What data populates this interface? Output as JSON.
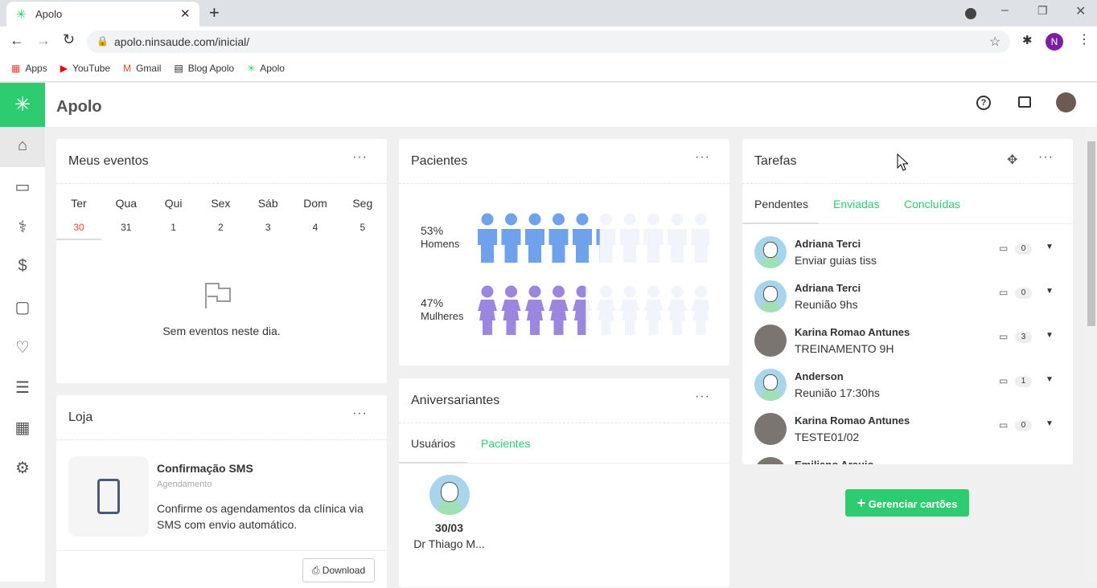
{
  "browser": {
    "tab_title": "Apolo",
    "url": "apolo.ninsaude.com/inicial/",
    "profile": "N",
    "bookmarks": [
      "Apps",
      "YouTube",
      "Gmail",
      "Blog Apolo",
      "Apolo"
    ]
  },
  "app": {
    "brand": "Apolo"
  },
  "events": {
    "title": "Meus eventos",
    "days": [
      {
        "name": "Ter",
        "date": "30"
      },
      {
        "name": "Qua",
        "date": "31"
      },
      {
        "name": "Qui",
        "date": "1"
      },
      {
        "name": "Sex",
        "date": "2"
      },
      {
        "name": "Sáb",
        "date": "3"
      },
      {
        "name": "Dom",
        "date": "4"
      },
      {
        "name": "Seg",
        "date": "5"
      }
    ],
    "empty": "Sem eventos neste dia."
  },
  "store": {
    "title": "Loja",
    "item": {
      "title": "Confirmação SMS",
      "subtitle": "Agendamento",
      "description": "Confirme os agendamentos da clínica via SMS com envio automático.",
      "button": "Download"
    }
  },
  "patients": {
    "title": "Pacientes",
    "groups": [
      {
        "percent": {
          "value": 53,
          "label": "53%"
        },
        "label": "Homens",
        "color": "#6fa1ec"
      },
      {
        "percent": {
          "value": 47,
          "label": "47%"
        },
        "label": "Mulheres",
        "color": "#9b86e0"
      }
    ]
  },
  "birthdays": {
    "title": "Aniversariantes",
    "tabs": [
      "Usuários",
      "Pacientes"
    ],
    "people": [
      {
        "date": "30/03",
        "name": "Dr Thiago M..."
      }
    ]
  },
  "tasks": {
    "title": "Tarefas",
    "tabs": [
      "Pendentes",
      "Enviadas",
      "Concluídas"
    ],
    "items": [
      {
        "name": "Adriana Terci",
        "task": "Enviar guias tiss",
        "comments": "0",
        "avatar": "default"
      },
      {
        "name": "Adriana Terci",
        "task": "Reunião 9hs",
        "comments": "0",
        "avatar": "default"
      },
      {
        "name": "Karina Romao Antunes",
        "task": "TREINAMENTO 9H",
        "comments": "3",
        "avatar": "photo"
      },
      {
        "name": "Anderson",
        "task": "Reunião 17:30hs",
        "comments": "1",
        "avatar": "default"
      },
      {
        "name": "Karina Romao Antunes",
        "task": "TESTE01/02",
        "comments": "0",
        "avatar": "photo"
      },
      {
        "name": "Emiliano Araujo",
        "task": "",
        "comments": "",
        "avatar": "photo"
      }
    ],
    "button": "Gerenciar cartões"
  }
}
